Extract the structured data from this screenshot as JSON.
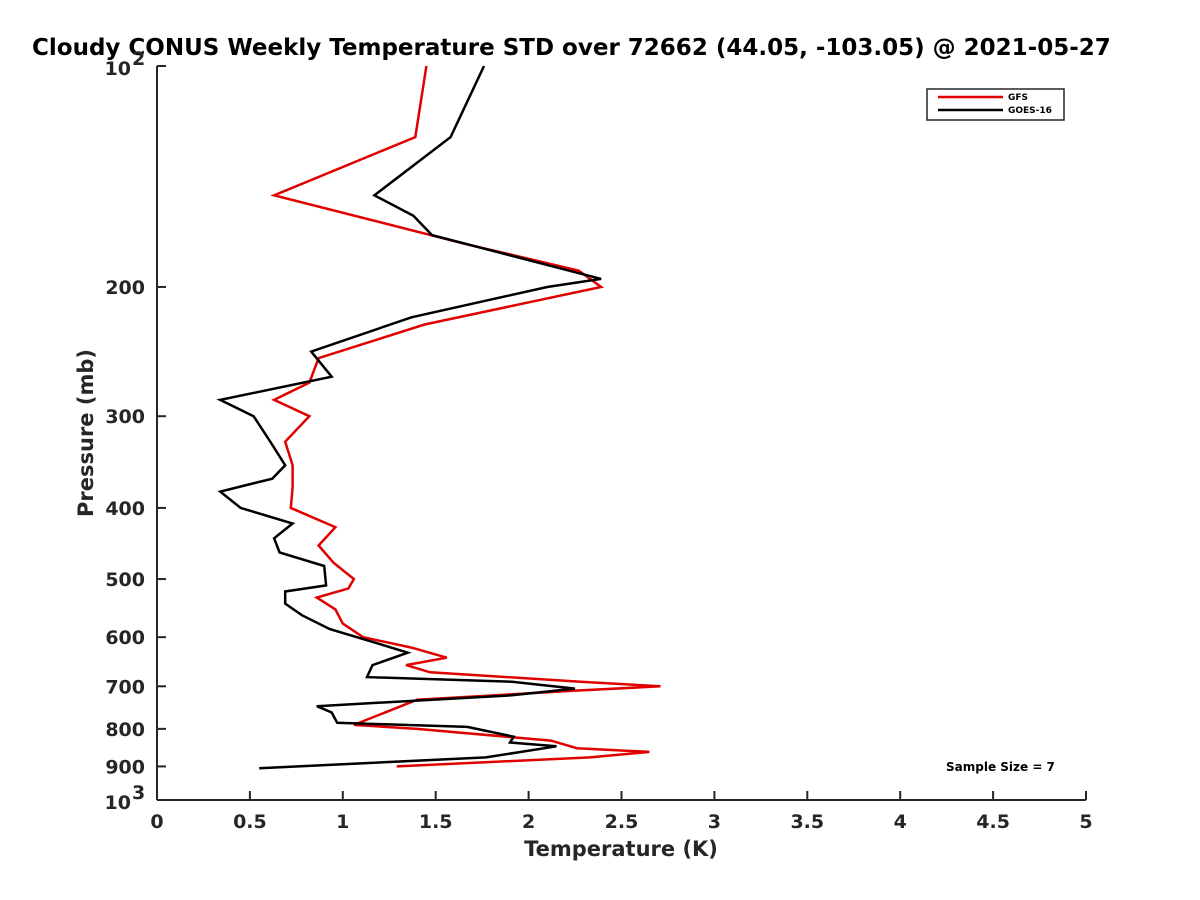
{
  "chart_data": {
    "type": "line",
    "title": "Cloudy CONUS Weekly Temperature STD over 72662 (44.05, -103.05) @ 2021-05-27",
    "xlabel": "Temperature (K)",
    "ylabel": "Pressure (mb)",
    "xlim": [
      0,
      5
    ],
    "ylim": [
      100,
      1000
    ],
    "y_scale": "log",
    "y_reversed": true,
    "x_ticks": [
      0,
      0.5,
      1,
      1.5,
      2,
      2.5,
      3,
      3.5,
      4,
      4.5,
      5
    ],
    "x_tick_labels": [
      "0",
      "0.5",
      "1",
      "1.5",
      "2",
      "2.5",
      "3",
      "3.5",
      "4",
      "4.5",
      "5"
    ],
    "y_ticks": [
      200,
      300,
      400,
      500,
      600,
      700,
      800,
      900
    ],
    "y_tick_labels": [
      "200",
      "300",
      "400",
      "500",
      "600",
      "700",
      "800",
      "900"
    ],
    "y_limit_labels": [
      {
        "base": "10",
        "exp": "2",
        "value": 100
      },
      {
        "base": "10",
        "exp": "3",
        "value": 1000
      }
    ],
    "legend": {
      "position": "top-right",
      "entries": [
        {
          "label": "GFS",
          "color": "#e00000"
        },
        {
          "label": "GOES-16",
          "color": "#000000"
        }
      ]
    },
    "annotation": "Sample Size = 7",
    "series": [
      {
        "name": "GFS",
        "color": "#e00000",
        "points": [
          [
            1.45,
            100
          ],
          [
            1.39,
            125
          ],
          [
            0.63,
            150
          ],
          [
            1.67,
            175
          ],
          [
            2.27,
            190
          ],
          [
            2.39,
            200
          ],
          [
            1.44,
            225
          ],
          [
            0.87,
            250
          ],
          [
            0.82,
            270
          ],
          [
            0.63,
            285
          ],
          [
            0.82,
            300
          ],
          [
            0.69,
            325
          ],
          [
            0.73,
            350
          ],
          [
            0.73,
            375
          ],
          [
            0.72,
            400
          ],
          [
            0.96,
            425
          ],
          [
            0.87,
            450
          ],
          [
            0.95,
            475
          ],
          [
            1.06,
            500
          ],
          [
            1.03,
            515
          ],
          [
            0.86,
            530
          ],
          [
            0.96,
            550
          ],
          [
            1.0,
            575
          ],
          [
            1.11,
            600
          ],
          [
            1.37,
            620
          ],
          [
            1.56,
            640
          ],
          [
            1.34,
            655
          ],
          [
            1.47,
            670
          ],
          [
            2.28,
            690
          ],
          [
            2.71,
            700
          ],
          [
            2.24,
            710
          ],
          [
            1.4,
            730
          ],
          [
            1.06,
            790
          ],
          [
            1.4,
            800
          ],
          [
            2.12,
            830
          ],
          [
            2.26,
            850
          ],
          [
            2.65,
            860
          ],
          [
            2.33,
            875
          ],
          [
            1.29,
            900
          ]
        ]
      },
      {
        "name": "GOES-16",
        "color": "#000000",
        "points": [
          [
            1.76,
            100
          ],
          [
            1.58,
            125
          ],
          [
            1.17,
            150
          ],
          [
            1.38,
            160
          ],
          [
            1.48,
            170
          ],
          [
            2.39,
            195
          ],
          [
            2.1,
            200
          ],
          [
            1.37,
            220
          ],
          [
            0.83,
            245
          ],
          [
            0.94,
            265
          ],
          [
            0.34,
            285
          ],
          [
            0.52,
            300
          ],
          [
            0.61,
            325
          ],
          [
            0.69,
            350
          ],
          [
            0.62,
            365
          ],
          [
            0.34,
            380
          ],
          [
            0.45,
            400
          ],
          [
            0.73,
            420
          ],
          [
            0.63,
            440
          ],
          [
            0.66,
            460
          ],
          [
            0.9,
            480
          ],
          [
            0.91,
            510
          ],
          [
            0.69,
            520
          ],
          [
            0.69,
            540
          ],
          [
            0.78,
            560
          ],
          [
            0.93,
            585
          ],
          [
            1.17,
            610
          ],
          [
            1.35,
            630
          ],
          [
            1.16,
            655
          ],
          [
            1.13,
            680
          ],
          [
            1.91,
            690
          ],
          [
            2.25,
            705
          ],
          [
            1.91,
            720
          ],
          [
            0.86,
            745
          ],
          [
            0.94,
            760
          ],
          [
            0.97,
            785
          ],
          [
            1.67,
            795
          ],
          [
            1.92,
            820
          ],
          [
            1.9,
            835
          ],
          [
            2.15,
            845
          ],
          [
            1.77,
            875
          ],
          [
            0.55,
            905
          ]
        ]
      }
    ]
  }
}
